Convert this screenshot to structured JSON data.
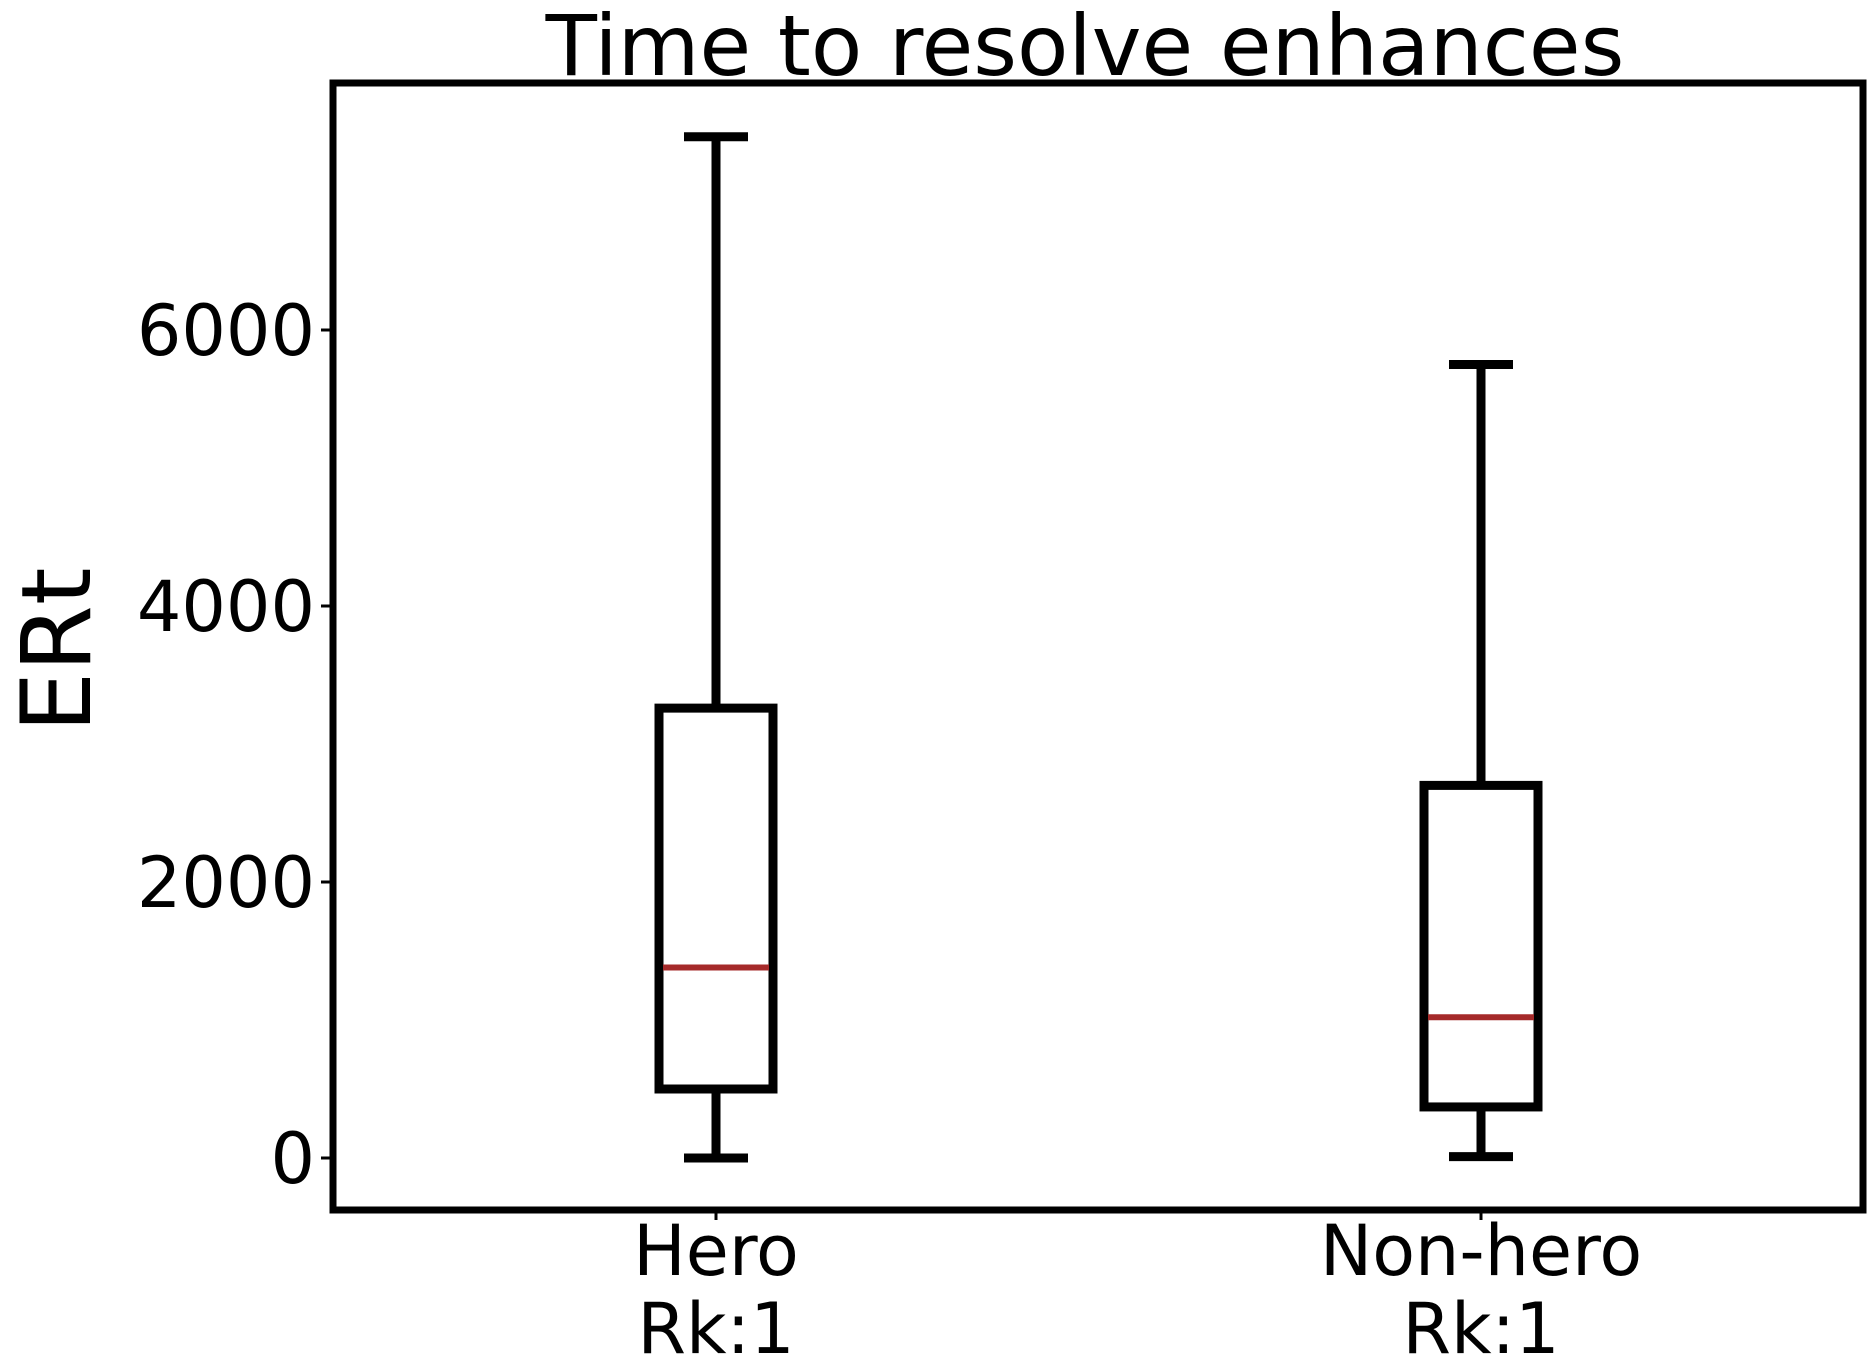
{
  "chart_data": {
    "type": "box",
    "title": "Time to resolve enhances",
    "xlabel": "",
    "ylabel": "ERt",
    "ylim": [
      -350,
      7800
    ],
    "yticks": [
      0,
      2000,
      4000,
      6000
    ],
    "grid": false,
    "legend": "none",
    "categories": [
      {
        "label_line1": "Hero",
        "label_line2": "Rk:1"
      },
      {
        "label_line1": "Non-hero",
        "label_line2": "Rk:1"
      }
    ],
    "boxes": [
      {
        "whisker_low": 0,
        "q1": 500,
        "median": 1380,
        "q3": 3260,
        "whisker_high": 7400
      },
      {
        "whisker_low": 10,
        "q1": 370,
        "median": 1020,
        "q3": 2700,
        "whisker_high": 5750
      }
    ],
    "colors": {
      "box": "#000000",
      "median": "#a52a2a"
    }
  }
}
